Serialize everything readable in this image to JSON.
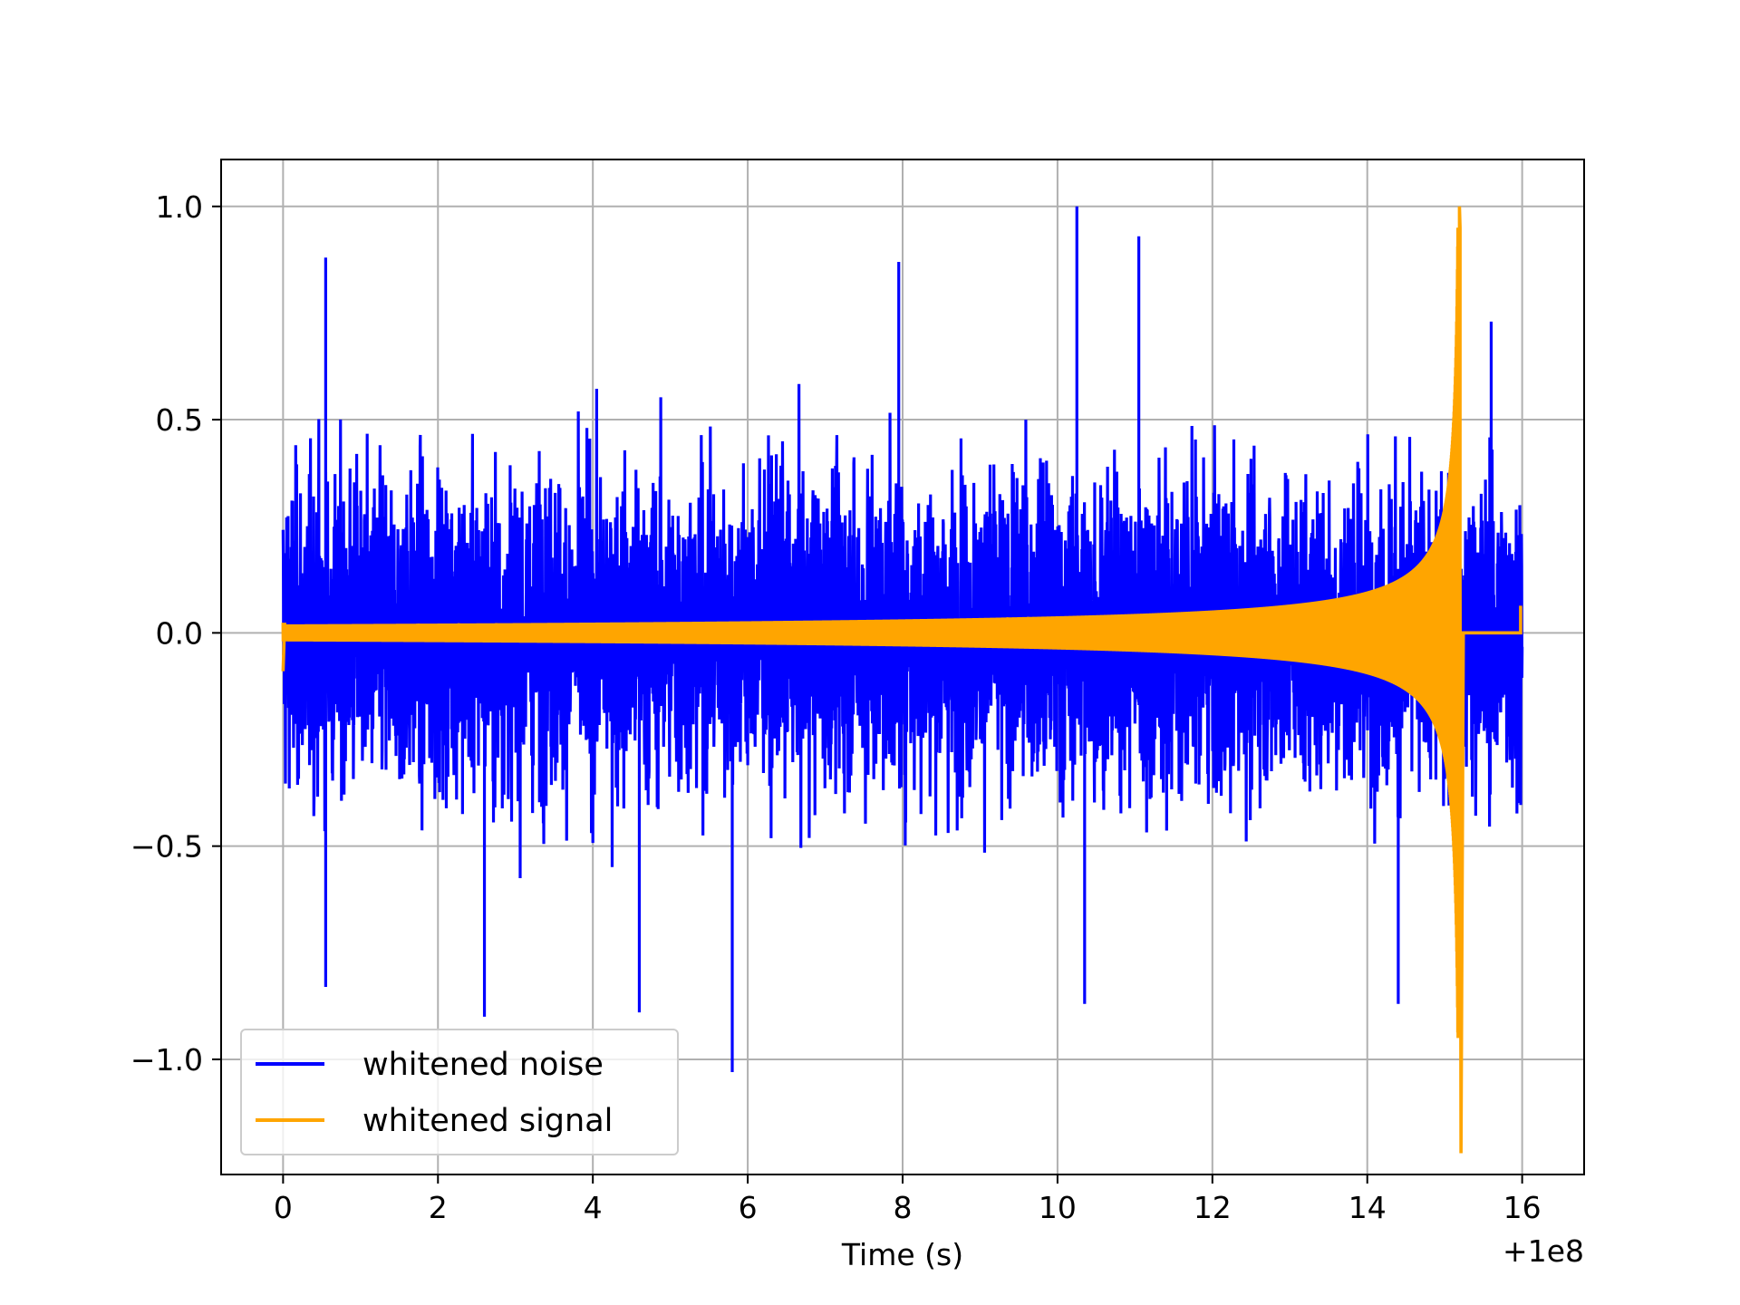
{
  "chart_data": {
    "type": "line",
    "title": "",
    "xlabel": "Time (s)",
    "ylabel": "",
    "x_offset_label": "+1e8",
    "xlim": [
      -0.8,
      16.8
    ],
    "ylim": [
      -1.27,
      1.11
    ],
    "x_ticks": [
      0,
      2,
      4,
      6,
      8,
      10,
      12,
      14,
      16
    ],
    "x_tick_labels": [
      "0",
      "2",
      "4",
      "6",
      "8",
      "10",
      "12",
      "14",
      "16"
    ],
    "y_ticks": [
      -1.0,
      -0.5,
      0.0,
      0.5,
      1.0
    ],
    "y_tick_labels": [
      "−1.0",
      "−0.5",
      "0.0",
      "0.5",
      "1.0"
    ],
    "grid": true,
    "legend_position": "lower-left",
    "series": [
      {
        "name": "whitened noise",
        "color": "#0000ff",
        "x_range": [
          0,
          16
        ],
        "typical_envelope": [
          -0.33,
          0.33
        ],
        "peaks": [
          {
            "x": 0.55,
            "y": 0.88
          },
          {
            "x": 0.55,
            "y": -0.83
          },
          {
            "x": 2.6,
            "y": -0.9
          },
          {
            "x": 4.6,
            "y": -0.89
          },
          {
            "x": 5.8,
            "y": -1.03
          },
          {
            "x": 7.95,
            "y": 0.87
          },
          {
            "x": 10.25,
            "y": 1.0
          },
          {
            "x": 10.35,
            "y": -0.87
          },
          {
            "x": 11.05,
            "y": 0.93
          },
          {
            "x": 14.4,
            "y": -0.87
          },
          {
            "x": 15.6,
            "y": 0.73
          }
        ]
      },
      {
        "name": "whitened signal",
        "color": "#ffa500",
        "x_range": [
          0,
          16
        ],
        "merger_time": 15.2,
        "merger_peak_max": 1.0,
        "merger_peak_min": -1.22,
        "initial_amplitude": 0.02,
        "post_merger_value": 0.0,
        "end_value": 0.06
      }
    ]
  }
}
